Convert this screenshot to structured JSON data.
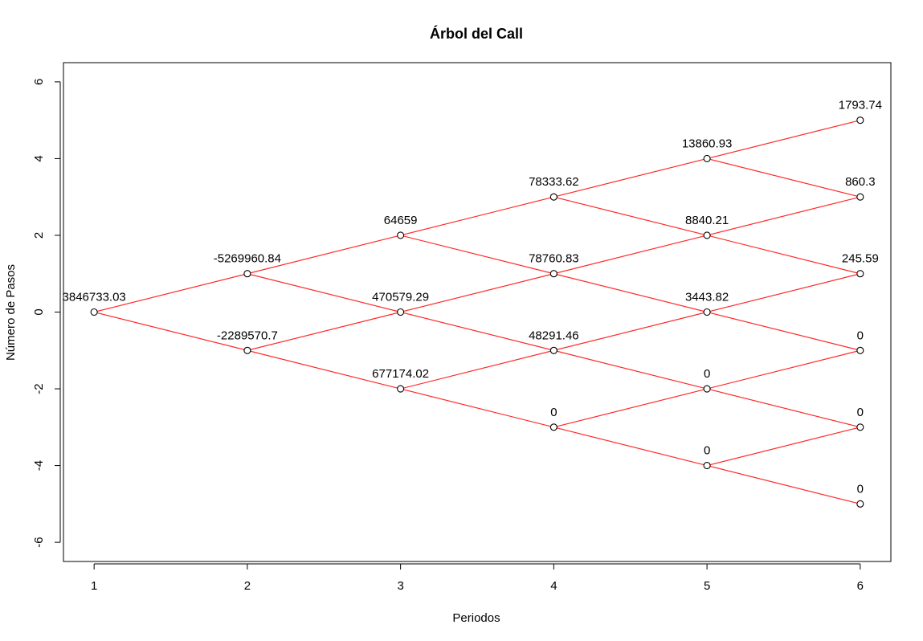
{
  "chart_data": {
    "type": "scatter",
    "title": "Árbol del Call",
    "xlabel": "Periodos",
    "ylabel": "Número de Pasos",
    "xlim": [
      0.8,
      6.2
    ],
    "ylim": [
      -6.5,
      6.5
    ],
    "x_ticks": [
      1,
      2,
      3,
      4,
      5,
      6
    ],
    "y_ticks": [
      -6,
      -4,
      -2,
      0,
      2,
      4,
      6
    ],
    "x_tick_labels": [
      "1",
      "2",
      "3",
      "4",
      "5",
      "6"
    ],
    "y_tick_labels": [
      "-6",
      "-4",
      "-2",
      "0",
      "2",
      "4",
      "6"
    ],
    "edge_color": "#ff2a2a",
    "nodes": [
      {
        "x": 1,
        "y": 0,
        "label": "3846733.03"
      },
      {
        "x": 2,
        "y": 1,
        "label": "-5269960.84"
      },
      {
        "x": 2,
        "y": -1,
        "label": "-2289570.7"
      },
      {
        "x": 3,
        "y": 2,
        "label": "64659"
      },
      {
        "x": 3,
        "y": 0,
        "label": "470579.29"
      },
      {
        "x": 3,
        "y": -2,
        "label": "677174.02"
      },
      {
        "x": 4,
        "y": 3,
        "label": "78333.62"
      },
      {
        "x": 4,
        "y": 1,
        "label": "78760.83"
      },
      {
        "x": 4,
        "y": -1,
        "label": "48291.46"
      },
      {
        "x": 4,
        "y": -3,
        "label": "0"
      },
      {
        "x": 5,
        "y": 4,
        "label": "13860.93"
      },
      {
        "x": 5,
        "y": 2,
        "label": "8840.21"
      },
      {
        "x": 5,
        "y": 0,
        "label": "3443.82"
      },
      {
        "x": 5,
        "y": -2,
        "label": "0"
      },
      {
        "x": 5,
        "y": -4,
        "label": "0"
      },
      {
        "x": 6,
        "y": 5,
        "label": "1793.74"
      },
      {
        "x": 6,
        "y": 3,
        "label": "860.3"
      },
      {
        "x": 6,
        "y": 1,
        "label": "245.59"
      },
      {
        "x": 6,
        "y": -1,
        "label": "0"
      },
      {
        "x": 6,
        "y": -3,
        "label": "0"
      },
      {
        "x": 6,
        "y": -5,
        "label": "0"
      }
    ]
  }
}
